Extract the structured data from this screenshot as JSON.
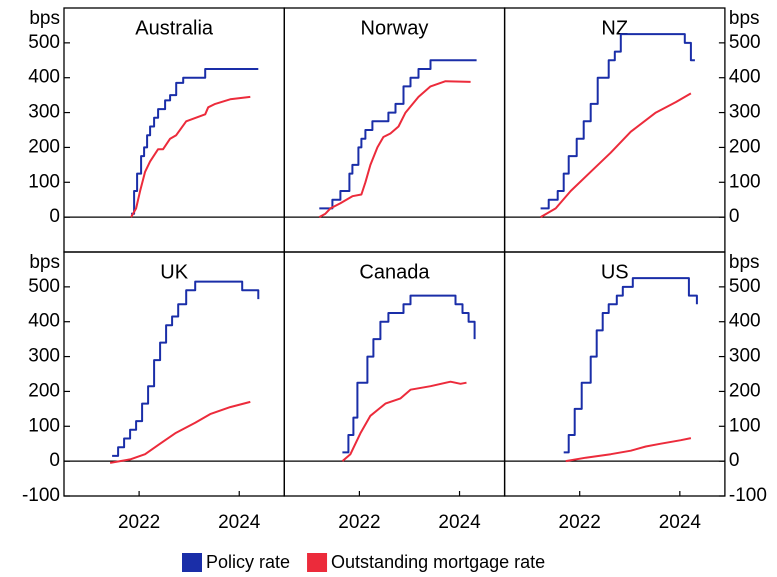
{
  "chart_data": {
    "type": "line",
    "legend": "bottom",
    "xlim": [
      2020.5,
      2024.9
    ],
    "ylim": [
      -100,
      600
    ],
    "series": [
      {
        "name": "Policy rate",
        "color": "#1a2ea8",
        "step": true
      },
      {
        "name": "Outstanding mortgage rate",
        "color": "#ec2b3b",
        "step": false
      }
    ],
    "panels": [
      {
        "title": "Australia",
        "ylabel": "bps",
        "yaxis": "left",
        "yticks": [
          0,
          100,
          200,
          300,
          400,
          500
        ],
        "series": [
          {
            "x": [
              2021.84,
              2021.9,
              2021.96,
              2022.04,
              2022.1,
              2022.16,
              2022.22,
              2022.3,
              2022.38,
              2022.52,
              2022.62,
              2022.74,
              2022.88,
              2023.32,
              2024.38
            ],
            "values": [
              10,
              75,
              125,
              175,
              200,
              235,
              260,
              285,
              310,
              335,
              350,
              385,
              400,
              425,
              425
            ]
          },
          {
            "x": [
              2021.84,
              2021.94,
              2022.02,
              2022.12,
              2022.22,
              2022.38,
              2022.48,
              2022.62,
              2022.74,
              2022.94,
              2023.32,
              2023.38,
              2023.52,
              2023.82,
              2024.22
            ],
            "values": [
              0,
              25,
              75,
              130,
              160,
              195,
              195,
              225,
              235,
              275,
              295,
              315,
              325,
              338,
              345
            ]
          }
        ]
      },
      {
        "title": "Norway",
        "series": [
          {
            "x": [
              2021.2,
              2021.46,
              2021.62,
              2021.8,
              2021.86,
              2021.98,
              2022.04,
              2022.12,
              2022.26,
              2022.58,
              2022.72,
              2022.88,
              2023.02,
              2023.18,
              2023.42,
              2024.34
            ],
            "values": [
              25,
              50,
              75,
              125,
              150,
              200,
              225,
              250,
              275,
              300,
              325,
              375,
              400,
              425,
              450,
              450
            ]
          },
          {
            "x": [
              2021.2,
              2021.32,
              2021.42,
              2021.62,
              2021.86,
              2022.04,
              2022.12,
              2022.22,
              2022.36,
              2022.48,
              2022.62,
              2022.78,
              2022.92,
              2023.18,
              2023.42,
              2023.72,
              2024.22
            ],
            "values": [
              0,
              10,
              25,
              40,
              60,
              65,
              100,
              150,
              200,
              230,
              240,
              260,
              300,
              345,
              375,
              390,
              388
            ]
          }
        ]
      },
      {
        "title": "NZ",
        "ylabel": "bps",
        "yaxis": "right",
        "yticks": [
          0,
          100,
          200,
          300,
          400,
          500
        ],
        "series": [
          {
            "x": [
              2021.22,
              2021.38,
              2021.56,
              2021.68,
              2021.78,
              2021.94,
              2022.08,
              2022.22,
              2022.36,
              2022.58,
              2022.7,
              2022.82,
              2024.1,
              2024.22,
              2024.3
            ],
            "values": [
              25,
              50,
              75,
              125,
              175,
              225,
              275,
              325,
              400,
              450,
              475,
              525,
              500,
              450,
              450
            ]
          },
          {
            "x": [
              2021.22,
              2021.52,
              2021.82,
              2022.22,
              2022.62,
              2023.02,
              2023.52,
              2023.92,
              2024.22
            ],
            "values": [
              0,
              25,
              75,
              130,
              185,
              245,
              300,
              330,
              355
            ]
          }
        ]
      },
      {
        "title": "UK",
        "ylabel": "bps",
        "yaxis": "left",
        "yticks": [
          -100,
          0,
          100,
          200,
          300,
          400,
          500
        ],
        "xticks": [
          2022,
          2024
        ],
        "series": [
          {
            "x": [
              2021.46,
              2021.58,
              2021.7,
              2021.82,
              2021.94,
              2022.06,
              2022.18,
              2022.3,
              2022.42,
              2022.54,
              2022.66,
              2022.78,
              2022.94,
              2023.12,
              2024.06,
              2024.38
            ],
            "values": [
              15,
              40,
              65,
              90,
              115,
              165,
              215,
              290,
              340,
              390,
              415,
              450,
              490,
              515,
              490,
              465
            ]
          },
          {
            "x": [
              2021.42,
              2021.82,
              2022.12,
              2022.42,
              2022.72,
              2023.12,
              2023.42,
              2023.82,
              2024.22
            ],
            "values": [
              -5,
              5,
              20,
              50,
              80,
              110,
              135,
              155,
              170
            ]
          }
        ]
      },
      {
        "title": "Canada",
        "xticks": [
          2022,
          2024
        ],
        "series": [
          {
            "x": [
              2021.66,
              2021.78,
              2021.88,
              2021.96,
              2022.16,
              2022.28,
              2022.42,
              2022.58,
              2022.88,
              2023.02,
              2023.92,
              2024.06,
              2024.18,
              2024.3
            ],
            "values": [
              25,
              75,
              125,
              225,
              300,
              350,
              400,
              425,
              450,
              475,
              450,
              425,
              400,
              350
            ]
          },
          {
            "x": [
              2021.66,
              2021.82,
              2022.02,
              2022.22,
              2022.52,
              2022.82,
              2023.02,
              2023.42,
              2023.82,
              2024.02,
              2024.14
            ],
            "values": [
              0,
              20,
              80,
              130,
              165,
              180,
              205,
              215,
              228,
              222,
              225
            ]
          }
        ]
      },
      {
        "title": "US",
        "ylabel": "bps",
        "yaxis": "right",
        "yticks": [
          -100,
          0,
          100,
          200,
          300,
          400,
          500
        ],
        "xticks": [
          2022,
          2024
        ],
        "series": [
          {
            "x": [
              2021.68,
              2021.78,
              2021.9,
              2022.04,
              2022.22,
              2022.34,
              2022.46,
              2022.58,
              2022.74,
              2022.86,
              2023.06,
              2024.18,
              2024.34
            ],
            "values": [
              25,
              75,
              150,
              225,
              300,
              375,
              425,
              450,
              475,
              500,
              525,
              475,
              450
            ]
          },
          {
            "x": [
              2021.72,
              2022.12,
              2022.62,
              2023.02,
              2023.32,
              2023.62,
              2024.02,
              2024.22
            ],
            "values": [
              0,
              10,
              20,
              30,
              42,
              50,
              60,
              66
            ]
          }
        ]
      }
    ]
  }
}
